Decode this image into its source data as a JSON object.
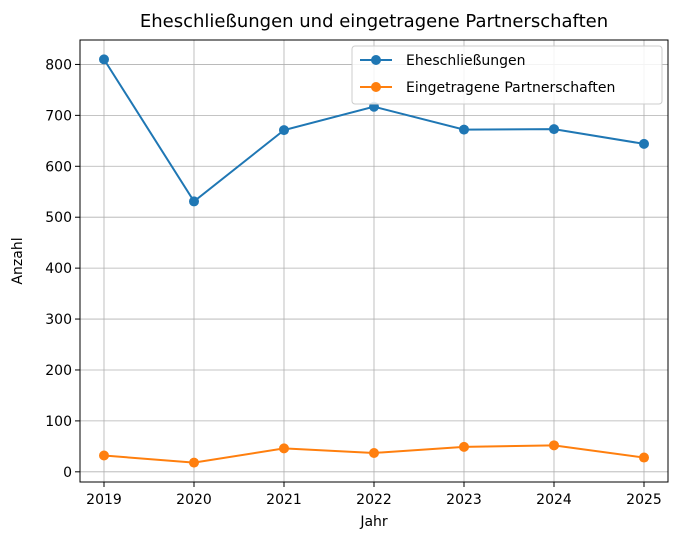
{
  "chart_data": {
    "type": "line",
    "title": "Eheschließungen und eingetragene Partnerschaften",
    "xlabel": "Jahr",
    "ylabel": "Anzahl",
    "categories": [
      "2019",
      "2020",
      "2021",
      "2022",
      "2023",
      "2024",
      "2025"
    ],
    "yticks": [
      0,
      100,
      200,
      300,
      400,
      500,
      600,
      700,
      800
    ],
    "ylim": [
      -20,
      848
    ],
    "grid": true,
    "legend_position": "top-right",
    "series": [
      {
        "name": "Eheschließungen",
        "color": "#1f77b4",
        "values": [
          810,
          531,
          671,
          717,
          672,
          673,
          644
        ]
      },
      {
        "name": "Eingetragene Partnerschaften",
        "color": "#ff7f0e",
        "values": [
          32,
          18,
          46,
          37,
          49,
          52,
          28
        ]
      }
    ]
  }
}
